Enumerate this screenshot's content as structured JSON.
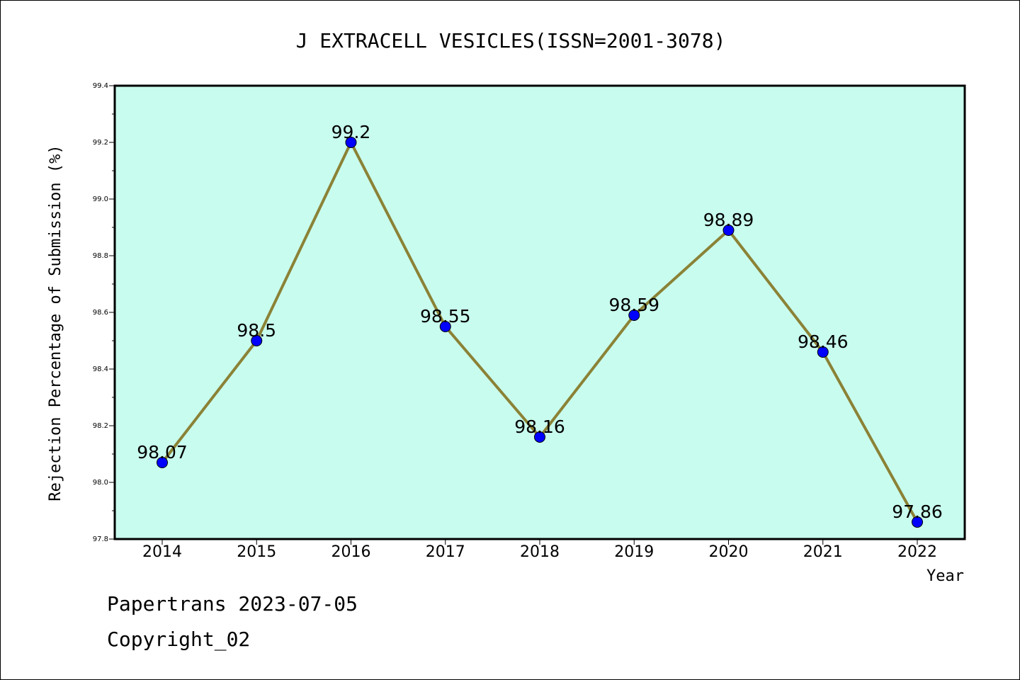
{
  "chart_data": {
    "type": "line",
    "title": "J EXTRACELL VESICLES(ISSN=2001-3078)",
    "xlabel": "Year",
    "ylabel": "Rejection Percentage of Submission (%)",
    "categories": [
      "2014",
      "2015",
      "2016",
      "2017",
      "2018",
      "2019",
      "2020",
      "2021",
      "2022"
    ],
    "values": [
      98.07,
      98.5,
      99.2,
      98.55,
      98.16,
      98.59,
      98.89,
      98.46,
      97.86
    ],
    "data_labels": [
      "98.07",
      "98.5",
      "99.2",
      "98.55",
      "98.16",
      "98.59",
      "98.89",
      "98.46",
      "97.86"
    ],
    "ylim": [
      97.8,
      99.4
    ],
    "yticks": [
      97.8,
      98.0,
      98.2,
      98.4,
      98.6,
      98.8,
      99.0,
      99.2,
      99.4
    ],
    "ytick_labels": [
      "97.8",
      "98.0",
      "98.2",
      "98.4",
      "98.6",
      "98.8",
      "99.0",
      "99.2",
      "99.4"
    ],
    "grid": false,
    "legend": "none",
    "colors": {
      "plot_background": "#c8fcee",
      "line": "#8b8236",
      "marker": "#0000ff",
      "axes": "#000000"
    }
  },
  "footer": {
    "line1": "Papertrans 2023-07-05",
    "line2": "Copyright_02"
  }
}
